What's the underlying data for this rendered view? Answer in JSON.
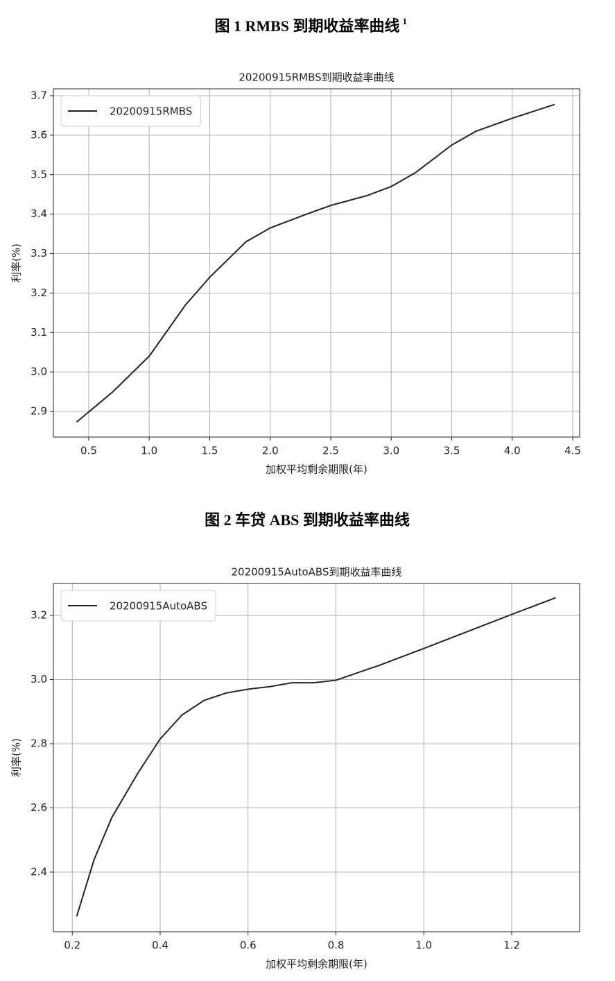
{
  "chart_data": [
    {
      "type": "line",
      "caption": "图 1 RMBS 到期收益率曲线",
      "caption_note": "1",
      "title": "20200915RMBS到期收益率曲线",
      "xlabel": "加权平均剩余期限(年)",
      "ylabel": "利率(%)",
      "x": [
        0.4,
        0.7,
        1.0,
        1.3,
        1.5,
        1.8,
        2.0,
        2.3,
        2.5,
        2.8,
        3.0,
        3.2,
        3.5,
        3.7,
        4.0,
        4.35
      ],
      "series": [
        {
          "name": "20200915RMBS",
          "color": "#222222",
          "values": [
            2.873,
            2.95,
            3.04,
            3.17,
            3.24,
            3.33,
            3.365,
            3.4,
            3.422,
            3.447,
            3.47,
            3.505,
            3.575,
            3.61,
            3.643,
            3.678
          ]
        }
      ],
      "xlim": [
        0.208,
        4.557
      ],
      "ylim": [
        2.835,
        3.7176
      ],
      "xticks": [
        0.5,
        {
          "value": 1,
          "label": "1.0"
        },
        1.5,
        {
          "value": 2,
          "label": "2.0"
        },
        2.5,
        {
          "value": 3,
          "label": "3.0"
        },
        3.5,
        {
          "value": 4,
          "label": "4.0"
        },
        4.5
      ],
      "yticks": [
        2.9,
        {
          "value": 3,
          "label": "3.0"
        },
        3.1,
        3.2,
        3.3,
        3.4,
        3.5,
        3.6,
        3.7
      ],
      "grid": true,
      "legend": "upper left"
    },
    {
      "type": "line",
      "caption": "图 2  车贷 ABS 到期收益率曲线",
      "title": "20200915AutoABS到期收益率曲线",
      "xlabel": "加权平均剩余期限(年)",
      "ylabel": "利率(%)",
      "x": [
        0.21,
        0.25,
        0.29,
        0.35,
        0.4,
        0.45,
        0.5,
        0.55,
        0.6,
        0.65,
        0.7,
        0.75,
        0.8,
        0.9,
        1.0,
        1.1,
        1.2,
        1.3
      ],
      "series": [
        {
          "name": "20200915AutoABS",
          "color": "#222222",
          "values": [
            2.262,
            2.44,
            2.57,
            2.71,
            2.815,
            2.89,
            2.935,
            2.958,
            2.97,
            2.978,
            2.99,
            2.99,
            2.998,
            3.045,
            3.097,
            3.15,
            3.203,
            3.255
          ]
        }
      ],
      "xlim": [
        0.157,
        1.3546
      ],
      "ylim": [
        2.214,
        3.2995
      ],
      "xticks": [
        0.2,
        0.4,
        0.6,
        0.8,
        {
          "value": 1,
          "label": "1.0"
        },
        1.2
      ],
      "yticks": [
        2.4,
        2.6,
        2.8,
        {
          "value": 3,
          "label": "3.0"
        },
        3.2
      ],
      "grid": true,
      "legend": "upper left"
    }
  ]
}
